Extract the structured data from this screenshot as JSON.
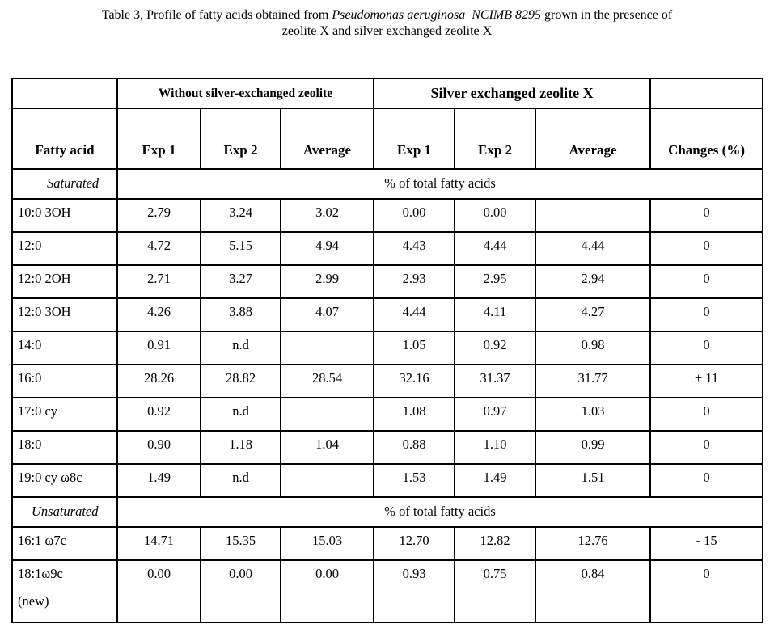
{
  "title": {
    "line1_prefix": "Table 3, Profile of fatty acids obtained from ",
    "line1_italic": "Pseudomonas aeruginosa  NCIMB 8295",
    "line1_suffix": " grown in the presence of",
    "line2": "zeolite X and silver exchanged zeolite X"
  },
  "table": {
    "group_headers": {
      "without": "Without silver-exchanged zeolite",
      "silver": "Silver exchanged zeolite X"
    },
    "column_headers": [
      "Fatty acid",
      "Exp 1",
      "Exp 2",
      "Average",
      "Exp 1",
      "Exp 2",
      "Average",
      "Changes (%)"
    ],
    "sections": [
      {
        "name": "Saturated",
        "unit_label": "% of total fatty acids",
        "rows": [
          {
            "label": "10:0 3OH",
            "values": [
              "2.79",
              "3.24",
              "3.02",
              "0.00",
              "0.00",
              "",
              "0"
            ]
          },
          {
            "label": "12:0",
            "values": [
              "4.72",
              "5.15",
              "4.94",
              "4.43",
              "4.44",
              "4.44",
              "0"
            ]
          },
          {
            "label": "12:0 2OH",
            "values": [
              "2.71",
              "3.27",
              "2.99",
              "2.93",
              "2.95",
              "2.94",
              "0"
            ]
          },
          {
            "label": "12:0 3OH",
            "values": [
              "4.26",
              "3.88",
              "4.07",
              "4.44",
              "4.11",
              "4.27",
              "0"
            ]
          },
          {
            "label": "14:0",
            "values": [
              "0.91",
              "n.d",
              "",
              "1.05",
              "0.92",
              "0.98",
              "0"
            ]
          },
          {
            "label": "16:0",
            "values": [
              "28.26",
              "28.82",
              "28.54",
              "32.16",
              "31.37",
              "31.77",
              "+ 11"
            ]
          },
          {
            "label": "17:0 cy",
            "values": [
              "0.92",
              "n.d",
              "",
              "1.08",
              "0.97",
              "1.03",
              "0"
            ]
          },
          {
            "label": "18:0",
            "values": [
              "0.90",
              "1.18",
              "1.04",
              "0.88",
              "1.10",
              "0.99",
              "0"
            ]
          },
          {
            "label": "19:0 cy ω8c",
            "values": [
              "1.49",
              "n.d",
              "",
              "1.53",
              "1.49",
              "1.51",
              "0"
            ]
          }
        ]
      },
      {
        "name": "Unsaturated",
        "unit_label": "% of total fatty acids",
        "rows": [
          {
            "label": "16:1 ω7c",
            "values": [
              "14.71",
              "15.35",
              "15.03",
              "12.70",
              "12.82",
              "12.76",
              "- 15"
            ]
          },
          {
            "label": "18:1ω9c",
            "label_line2": "(new)",
            "values": [
              "0.00",
              "0.00",
              "0.00",
              "0.93",
              "0.75",
              "0.84",
              "0"
            ]
          }
        ]
      }
    ]
  }
}
